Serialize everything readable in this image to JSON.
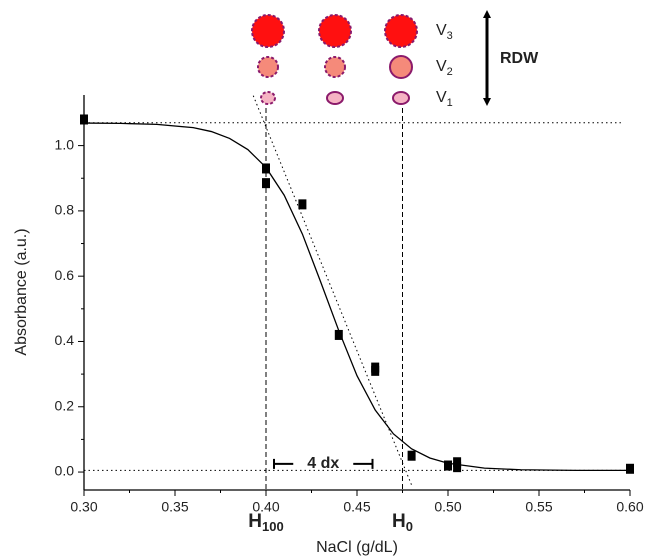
{
  "chart_data": {
    "type": "scatter",
    "xlabel": "NaCl (g/dL)",
    "ylabel": "Absorbance (a.u.)",
    "xlim": [
      0.3,
      0.6
    ],
    "ylim": [
      -0.055,
      1.155
    ],
    "xticks": [
      {
        "value": 0.3,
        "label": "0.30"
      },
      {
        "value": 0.35,
        "label": "0.35"
      },
      {
        "value": 0.4,
        "label": "0.40"
      },
      {
        "value": 0.45,
        "label": "0.45"
      },
      {
        "value": 0.5,
        "label": "0.50"
      },
      {
        "value": 0.55,
        "label": "0.55"
      },
      {
        "value": 0.6,
        "label": "0.60"
      }
    ],
    "yticks": [
      {
        "value": 0,
        "label": "0.0"
      },
      {
        "value": 0.2,
        "label": "0.2"
      },
      {
        "value": 0.4,
        "label": "0.4"
      },
      {
        "value": 0.6,
        "label": "0.6"
      },
      {
        "value": 0.8,
        "label": "0.8"
      },
      {
        "value": 1,
        "label": "1.0"
      }
    ],
    "points": {
      "color": "#000000",
      "x": [
        0.3,
        0.4,
        0.4,
        0.42,
        0.44,
        0.46,
        0.46,
        0.48,
        0.5,
        0.505,
        0.505,
        0.6
      ],
      "y": [
        1.08,
        0.93,
        0.885,
        0.82,
        0.42,
        0.32,
        0.31,
        0.05,
        0.02,
        0.03,
        0.015,
        0.01
      ]
    },
    "fit": {
      "color": "#000000",
      "x": [
        0.3,
        0.32,
        0.34,
        0.36,
        0.37,
        0.38,
        0.39,
        0.4,
        0.41,
        0.42,
        0.43,
        0.44,
        0.45,
        0.46,
        0.47,
        0.48,
        0.49,
        0.5,
        0.52,
        0.54,
        0.57,
        0.6
      ],
      "y": [
        1.069,
        1.068,
        1.065,
        1.055,
        1.043,
        1.022,
        0.988,
        0.933,
        0.848,
        0.729,
        0.583,
        0.433,
        0.295,
        0.19,
        0.117,
        0.071,
        0.043,
        0.027,
        0.012,
        0.007,
        0.005,
        0.005
      ]
    },
    "hlines": [
      {
        "y": 1.07,
        "x": [
          0.3,
          0.595
        ]
      },
      {
        "y": 0.005,
        "x": [
          0.3,
          0.6
        ]
      }
    ],
    "tangent": {
      "x": [
        0.393,
        0.48
      ],
      "y": [
        1.153,
        -0.04
      ]
    },
    "markers": [
      {
        "x": 0.4,
        "text": "H",
        "sub": "100"
      },
      {
        "x": 0.475,
        "text": "H",
        "sub": "0"
      }
    ],
    "span": {
      "label": "4 dx",
      "y": 0.025
    },
    "volumes": {
      "labels": [
        {
          "text": "V",
          "sub": "3"
        },
        {
          "text": "V",
          "sub": "2"
        },
        {
          "text": "V",
          "sub": "1"
        }
      ],
      "arrow_label": "RDW"
    }
  }
}
